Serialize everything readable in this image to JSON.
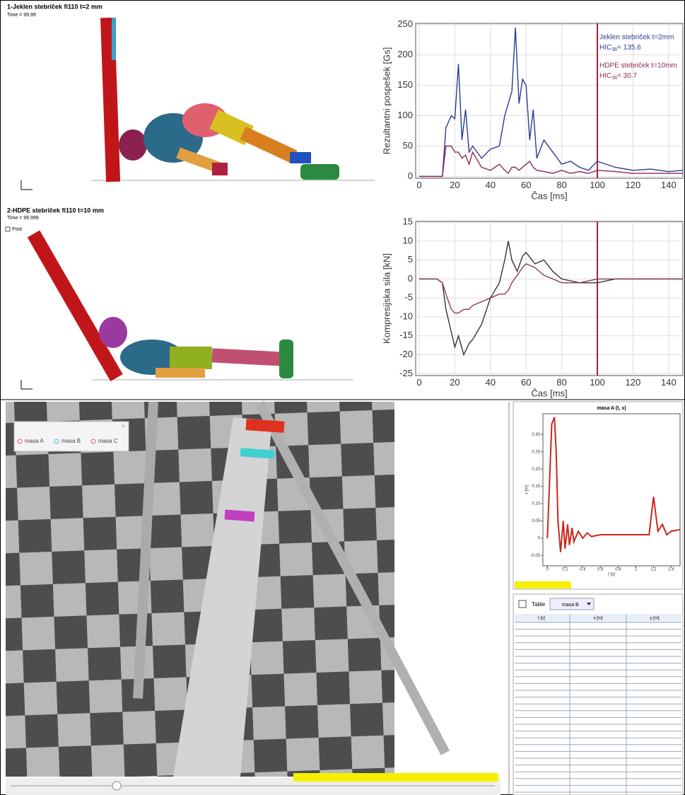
{
  "simulations": [
    {
      "title": "1-Jeklen stebriček   fi110   t=2 mm",
      "time": "Time =       99.99"
    },
    {
      "title": "2-HDPE stebriček   fi110   t=10 mm",
      "time": "Time =       99.999",
      "tag": "Post"
    }
  ],
  "chart_data": [
    {
      "type": "line",
      "ylabel": "Rezultantni pospešek [Gs]",
      "xlabel": "Čas  [ms]",
      "x": [
        0,
        13,
        15,
        18,
        20,
        22,
        24,
        26,
        28,
        30,
        35,
        40,
        45,
        48,
        50,
        52,
        54,
        56,
        58,
        60,
        62,
        64,
        66,
        70,
        75,
        80,
        85,
        90,
        95,
        100,
        110,
        120,
        130,
        140,
        148
      ],
      "series": [
        {
          "name": "Jeklen stebriček t=2mm",
          "color": "#2b3b8f",
          "hic": {
            "label": "HIC",
            "sub": "36",
            "text": "= 135.6"
          },
          "values": [
            0,
            0,
            80,
            100,
            95,
            185,
            60,
            110,
            40,
            50,
            30,
            45,
            50,
            100,
            120,
            140,
            245,
            120,
            160,
            150,
            60,
            110,
            30,
            60,
            40,
            20,
            25,
            15,
            10,
            25,
            15,
            10,
            12,
            8,
            10
          ]
        },
        {
          "name": "HDPE stebriček t=10mm",
          "color": "#8a2a5a",
          "hic": {
            "label": "HIC",
            "sub": "36",
            "text": "= 30.7"
          },
          "values": [
            0,
            0,
            50,
            50,
            40,
            40,
            30,
            35,
            20,
            40,
            15,
            10,
            20,
            10,
            5,
            15,
            15,
            10,
            15,
            20,
            25,
            15,
            10,
            8,
            5,
            10,
            5,
            8,
            5,
            10,
            8,
            5,
            5,
            5,
            5
          ]
        }
      ],
      "xlim": [
        -2,
        148
      ],
      "ylim": [
        -3,
        252
      ],
      "xticks": [
        0,
        20,
        40,
        60,
        80,
        100,
        120,
        140
      ],
      "yticks": [
        0,
        50,
        100,
        150,
        200,
        250
      ],
      "grid": true,
      "vline": 100,
      "vline_color": "#a0203a"
    },
    {
      "type": "line",
      "ylabel": "Kompresijska sila [kN]",
      "xlabel": "Čas  [ms]",
      "x": [
        0,
        10,
        13,
        15,
        18,
        20,
        22,
        25,
        28,
        30,
        35,
        40,
        45,
        48,
        50,
        52,
        55,
        58,
        60,
        65,
        70,
        75,
        80,
        90,
        100,
        110,
        120,
        130,
        140,
        148
      ],
      "series": [
        {
          "color": "#333333",
          "values": [
            0,
            0,
            -1,
            -8,
            -14,
            -18,
            -15,
            -20,
            -17,
            -16,
            -12,
            -5,
            -1,
            5,
            10,
            5,
            2,
            6,
            7,
            4,
            5,
            2,
            0,
            -1,
            -1,
            0,
            0,
            0,
            0,
            0
          ]
        },
        {
          "color": "#8b3a4a",
          "values": [
            0,
            0,
            -1,
            -4,
            -8,
            -9,
            -9,
            -8,
            -8,
            -7,
            -6,
            -5,
            -4,
            -4,
            -3,
            -1,
            1,
            3,
            4,
            3,
            1,
            0,
            -1,
            -1,
            0,
            0,
            0,
            0,
            0,
            0
          ]
        }
      ],
      "xlim": [
        -2,
        148
      ],
      "ylim": [
        -25.5,
        15.2
      ],
      "xticks": [
        0,
        20,
        40,
        60,
        80,
        100,
        120,
        140
      ],
      "yticks": [
        -25,
        -20,
        -15,
        -10,
        -5,
        0,
        5,
        10,
        15
      ],
      "grid": true,
      "vline": 100,
      "vline_color": "#a0203a"
    },
    {
      "type": "line",
      "title": "masa A (t, x)",
      "xlabel": "t [s]",
      "ylabel": "x [m]",
      "x": [
        0,
        0.05,
        0.08,
        0.1,
        0.12,
        0.15,
        0.18,
        0.2,
        0.23,
        0.25,
        0.28,
        0.3,
        0.35,
        0.4,
        0.45,
        0.5,
        0.6,
        0.8,
        1.0,
        1.15,
        1.2,
        1.25,
        1.3,
        1.35,
        1.4,
        1.5
      ],
      "series": [
        {
          "color": "#c8281e",
          "values": [
            0,
            0.33,
            0.35,
            0.25,
            0.05,
            -0.04,
            0.05,
            -0.03,
            0.04,
            -0.02,
            0.03,
            -0.01,
            0.02,
            0,
            0.015,
            0.005,
            0.01,
            0.01,
            0.01,
            0.01,
            0.12,
            0.02,
            0.04,
            0.01,
            0.02,
            0.025
          ]
        }
      ],
      "xlim": [
        -0.05,
        1.5
      ],
      "ylim": [
        -0.08,
        0.36
      ],
      "xticks": [
        0,
        0.2,
        0.4,
        0.6,
        0.8,
        1.0,
        1.2,
        1.4
      ],
      "yticks": [
        -0.05,
        0,
        0.05,
        {
          "value": 0.1,
          "label": "0.10"
        },
        0.15,
        {
          "value": 0.2,
          "label": "0.20"
        },
        0.25,
        {
          "value": 0.3,
          "label": "0.30"
        }
      ],
      "grid": false
    }
  ],
  "video": {
    "points": [
      "masa A",
      "masa B",
      "masa C"
    ]
  },
  "table": {
    "title": "Table",
    "selection": "masa B",
    "columns": [
      "t [s]",
      "x [m]",
      "y [m]"
    ]
  }
}
